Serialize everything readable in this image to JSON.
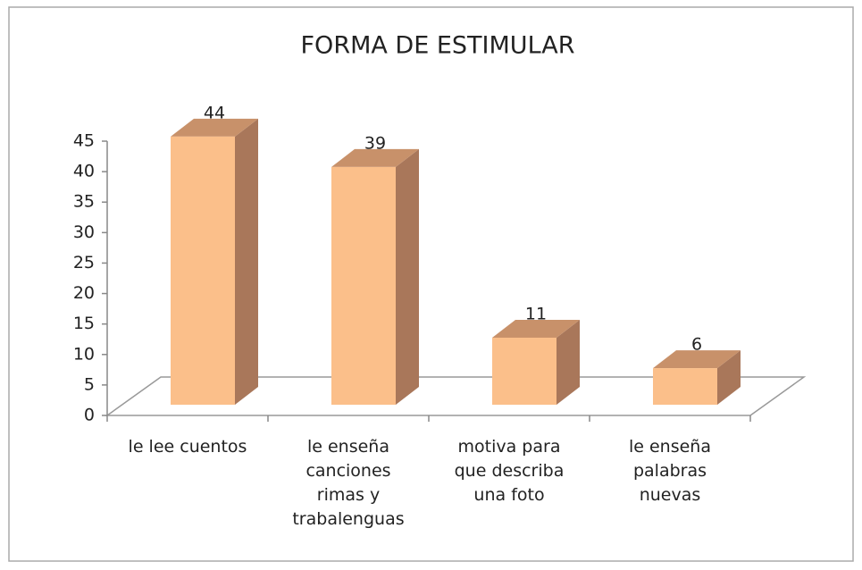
{
  "chart_data": {
    "type": "bar3d",
    "title": "FORMA DE ESTIMULAR",
    "categories": [
      [
        "le lee cuentos"
      ],
      [
        "le enseña",
        "canciones",
        "rimas y",
        "trabalenguas"
      ],
      [
        "motiva para",
        "que describa",
        "una foto"
      ],
      [
        "le enseña",
        "palabras",
        "nuevas"
      ]
    ],
    "values": [
      44,
      39,
      11,
      6
    ],
    "color": "#fbbf8a",
    "ylim": [
      0,
      45
    ],
    "yticks": [
      0,
      5,
      10,
      15,
      20,
      25,
      30,
      35,
      40,
      45
    ]
  }
}
